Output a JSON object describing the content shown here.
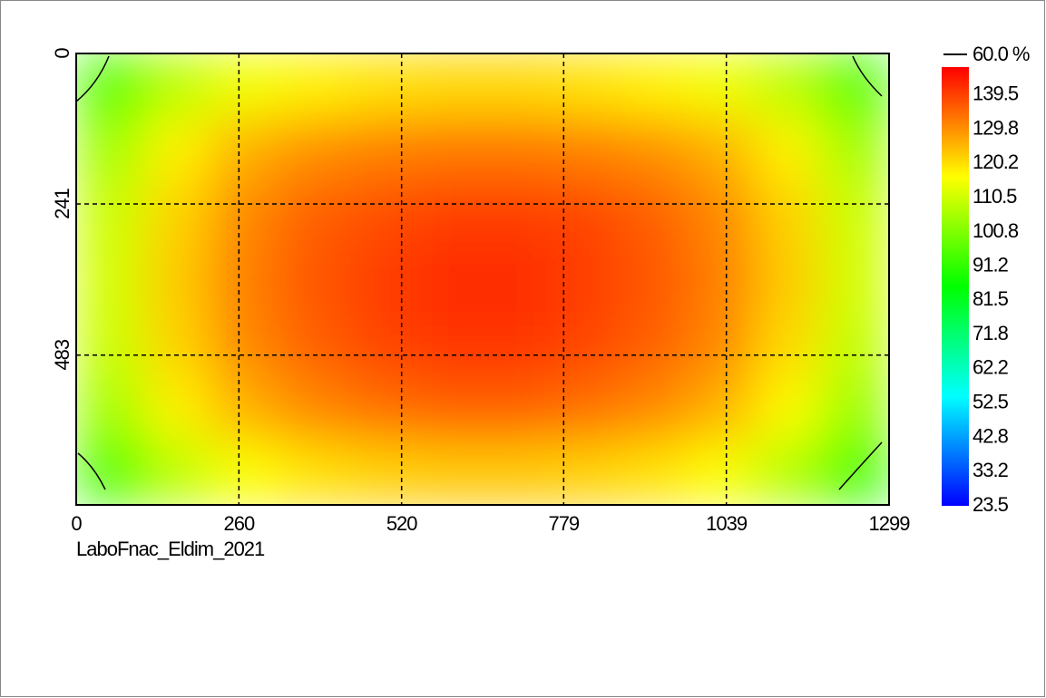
{
  "chart_data": {
    "type": "heatmap",
    "xlim": [
      0,
      1299
    ],
    "xticks": [
      0,
      260,
      520,
      779,
      1039,
      1299
    ],
    "ylim": [
      0,
      723
    ],
    "yticks": [
      0,
      241,
      483
    ],
    "grid": true,
    "annotation": "LaboFnac_Eldim_2021",
    "contour_label": "60.0 %",
    "clim": [
      23.5,
      147.4
    ],
    "colorbar_ticks": [
      139.5,
      129.8,
      120.2,
      110.5,
      100.8,
      91.2,
      81.5,
      71.8,
      62.2,
      52.5,
      42.8,
      33.2,
      23.5
    ],
    "colorscale": [
      "#0000ff",
      "#00ffff",
      "#00ff00",
      "#ffff00",
      "#ff0000"
    ],
    "z": [
      [
        95,
        108,
        115,
        118,
        120,
        121,
        121,
        120,
        118,
        115,
        108,
        95
      ],
      [
        105,
        118,
        126,
        130,
        132,
        133,
        133,
        132,
        130,
        126,
        118,
        105
      ],
      [
        110,
        122,
        131,
        136,
        138,
        140,
        140,
        139,
        136,
        131,
        122,
        110
      ],
      [
        111,
        123,
        132,
        137,
        140,
        142,
        142,
        140,
        137,
        132,
        123,
        111
      ],
      [
        110,
        122,
        131,
        136,
        139,
        141,
        141,
        139,
        136,
        131,
        121,
        109
      ],
      [
        105,
        118,
        126,
        131,
        134,
        136,
        136,
        134,
        131,
        126,
        117,
        104
      ],
      [
        94,
        108,
        116,
        120,
        122,
        123,
        123,
        122,
        120,
        116,
        107,
        93
      ]
    ]
  }
}
